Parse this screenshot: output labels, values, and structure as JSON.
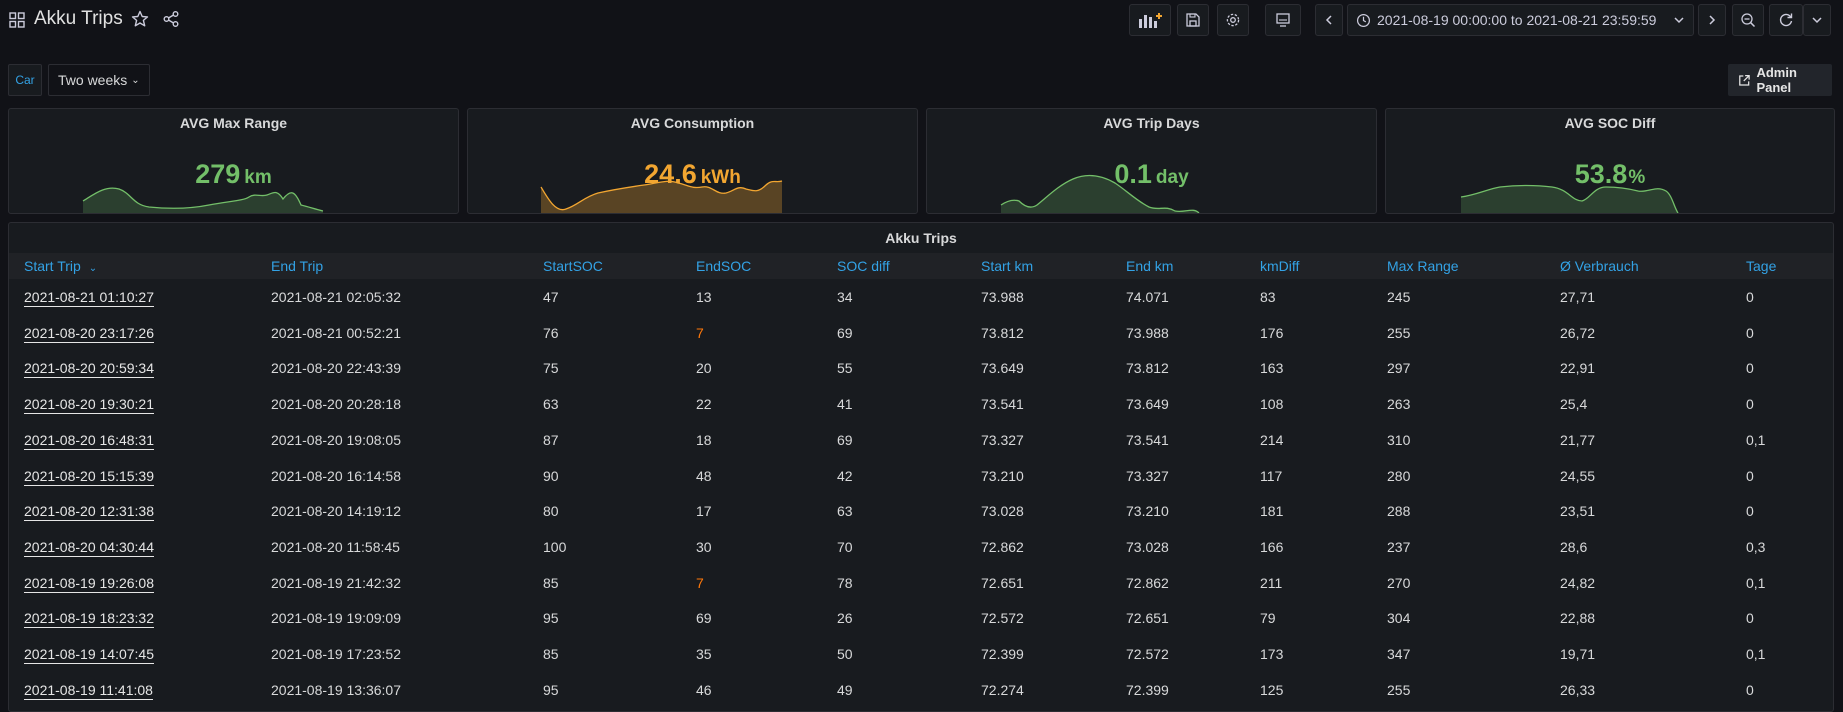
{
  "header": {
    "title": "Akku Trips",
    "time_range": "2021-08-19 00:00:00 to 2021-08-21 23:59:59"
  },
  "variables": {
    "car_label": "Car",
    "period_value": "Two weeks"
  },
  "admin_panel_label": "Admin Panel",
  "colors": {
    "background": "#111217",
    "panel": "#181b1f",
    "green": "#73bf69",
    "orange": "#f2a631",
    "link_blue": "#33a2e5",
    "warning": "#ff780a"
  },
  "stats": [
    {
      "title": "AVG Max Range",
      "value": "279",
      "unit": "km",
      "color": "#73bf69"
    },
    {
      "title": "AVG Consumption",
      "value": "24.6",
      "unit": "kWh",
      "color": "#f2a631"
    },
    {
      "title": "AVG Trip Days",
      "value": "0.1",
      "unit": "day",
      "color": "#73bf69"
    },
    {
      "title": "AVG SOC Diff",
      "value": "53.8",
      "unit": "%",
      "color": "#73bf69"
    }
  ],
  "table": {
    "title": "Akku Trips",
    "columns": [
      "Start Trip",
      "End Trip",
      "StartSOC",
      "EndSOC",
      "SOC diff",
      "Start km",
      "End km",
      "kmDiff",
      "Max Range",
      "Ø Verbrauch",
      "Tage"
    ],
    "rows": [
      [
        "2021-08-21 01:10:27",
        "2021-08-21 02:05:32",
        "47",
        "13",
        "34",
        "73.988",
        "74.071",
        "83",
        "245",
        "27,71",
        "0"
      ],
      [
        "2021-08-20 23:17:26",
        "2021-08-21 00:52:21",
        "76",
        "7",
        "69",
        "73.812",
        "73.988",
        "176",
        "255",
        "26,72",
        "0"
      ],
      [
        "2021-08-20 20:59:34",
        "2021-08-20 22:43:39",
        "75",
        "20",
        "55",
        "73.649",
        "73.812",
        "163",
        "297",
        "22,91",
        "0"
      ],
      [
        "2021-08-20 19:30:21",
        "2021-08-20 20:28:18",
        "63",
        "22",
        "41",
        "73.541",
        "73.649",
        "108",
        "263",
        "25,4",
        "0"
      ],
      [
        "2021-08-20 16:48:31",
        "2021-08-20 19:08:05",
        "87",
        "18",
        "69",
        "73.327",
        "73.541",
        "214",
        "310",
        "21,77",
        "0,1"
      ],
      [
        "2021-08-20 15:15:39",
        "2021-08-20 16:14:58",
        "90",
        "48",
        "42",
        "73.210",
        "73.327",
        "117",
        "280",
        "24,55",
        "0"
      ],
      [
        "2021-08-20 12:31:38",
        "2021-08-20 14:19:12",
        "80",
        "17",
        "63",
        "73.028",
        "73.210",
        "181",
        "288",
        "23,51",
        "0"
      ],
      [
        "2021-08-20 04:30:44",
        "2021-08-20 11:58:45",
        "100",
        "30",
        "70",
        "72.862",
        "73.028",
        "166",
        "237",
        "28,6",
        "0,3"
      ],
      [
        "2021-08-19 19:26:08",
        "2021-08-19 21:42:32",
        "85",
        "7",
        "78",
        "72.651",
        "72.862",
        "211",
        "270",
        "24,82",
        "0,1"
      ],
      [
        "2021-08-19 18:23:32",
        "2021-08-19 19:09:09",
        "95",
        "69",
        "26",
        "72.572",
        "72.651",
        "79",
        "304",
        "22,88",
        "0"
      ],
      [
        "2021-08-19 14:07:45",
        "2021-08-19 17:23:52",
        "85",
        "35",
        "50",
        "72.399",
        "72.572",
        "173",
        "347",
        "19,71",
        "0,1"
      ],
      [
        "2021-08-19 11:41:08",
        "2021-08-19 13:36:07",
        "95",
        "46",
        "49",
        "72.274",
        "72.399",
        "125",
        "255",
        "26,33",
        "0"
      ]
    ]
  }
}
